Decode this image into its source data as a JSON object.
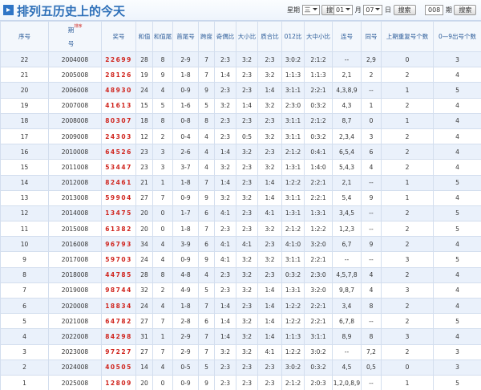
{
  "header": {
    "title": "排列五历史上的今天",
    "weekday_label": "星期",
    "weekday_value": "三",
    "month_value": "01",
    "month_label": "月",
    "day_value": "07",
    "day_label": "日",
    "issue_value": "008",
    "issue_label": "期",
    "search": "搜索"
  },
  "table": {
    "columns": [
      "序号",
      "期号",
      "奖号",
      "和值",
      "和值尾",
      "首尾号",
      "跨度",
      "奇偶比",
      "大小比",
      "质合比",
      "012比",
      "大中小比",
      "连号",
      "同号",
      "上期重复号个数",
      "0—9出号个数"
    ],
    "sort_label": "排序",
    "rows": [
      [
        "22",
        "2004008",
        "22699",
        "28",
        "8",
        "2-9",
        "7",
        "2:3",
        "3:2",
        "2:3",
        "3:0:2",
        "2:1:2",
        "--",
        "2,9",
        "0",
        "3"
      ],
      [
        "21",
        "2005008",
        "28126",
        "19",
        "9",
        "1-8",
        "7",
        "1:4",
        "2:3",
        "3:2",
        "1:1:3",
        "1:1:3",
        "2,1",
        "2",
        "2",
        "4"
      ],
      [
        "20",
        "2006008",
        "48930",
        "24",
        "4",
        "0-9",
        "9",
        "2:3",
        "2:3",
        "1:4",
        "3:1:1",
        "2:2:1",
        "4,3,8,9",
        "--",
        "1",
        "5"
      ],
      [
        "19",
        "2007008",
        "41613",
        "15",
        "5",
        "1-6",
        "5",
        "3:2",
        "1:4",
        "3:2",
        "2:3:0",
        "0:3:2",
        "4,3",
        "1",
        "2",
        "4"
      ],
      [
        "18",
        "2008008",
        "80307",
        "18",
        "8",
        "0-8",
        "8",
        "2:3",
        "2:3",
        "2:3",
        "3:1:1",
        "2:1:2",
        "8,7",
        "0",
        "1",
        "4"
      ],
      [
        "17",
        "2009008",
        "24303",
        "12",
        "2",
        "0-4",
        "4",
        "2:3",
        "0:5",
        "3:2",
        "3:1:1",
        "0:3:2",
        "2,3,4",
        "3",
        "2",
        "4"
      ],
      [
        "16",
        "2010008",
        "64526",
        "23",
        "3",
        "2-6",
        "4",
        "1:4",
        "3:2",
        "2:3",
        "2:1:2",
        "0:4:1",
        "6,5,4",
        "6",
        "2",
        "4"
      ],
      [
        "15",
        "2011008",
        "53447",
        "23",
        "3",
        "3-7",
        "4",
        "3:2",
        "2:3",
        "3:2",
        "1:3:1",
        "1:4:0",
        "5,4,3",
        "4",
        "2",
        "4"
      ],
      [
        "14",
        "2012008",
        "82461",
        "21",
        "1",
        "1-8",
        "7",
        "1:4",
        "2:3",
        "1:4",
        "1:2:2",
        "2:2:1",
        "2,1",
        "--",
        "1",
        "5"
      ],
      [
        "13",
        "2013008",
        "59904",
        "27",
        "7",
        "0-9",
        "9",
        "3:2",
        "3:2",
        "1:4",
        "3:1:1",
        "2:2:1",
        "5,4",
        "9",
        "1",
        "4"
      ],
      [
        "12",
        "2014008",
        "13475",
        "20",
        "0",
        "1-7",
        "6",
        "4:1",
        "2:3",
        "4:1",
        "1:3:1",
        "1:3:1",
        "3,4,5",
        "--",
        "2",
        "5"
      ],
      [
        "11",
        "2015008",
        "61382",
        "20",
        "0",
        "1-8",
        "7",
        "2:3",
        "2:3",
        "3:2",
        "2:1:2",
        "1:2:2",
        "1,2,3",
        "--",
        "2",
        "5"
      ],
      [
        "10",
        "2016008",
        "96793",
        "34",
        "4",
        "3-9",
        "6",
        "4:1",
        "4:1",
        "2:3",
        "4:1:0",
        "3:2:0",
        "6,7",
        "9",
        "2",
        "4"
      ],
      [
        "9",
        "2017008",
        "59703",
        "24",
        "4",
        "0-9",
        "9",
        "4:1",
        "3:2",
        "3:2",
        "3:1:1",
        "2:2:1",
        "--",
        "--",
        "3",
        "5"
      ],
      [
        "8",
        "2018008",
        "44785",
        "28",
        "8",
        "4-8",
        "4",
        "2:3",
        "3:2",
        "2:3",
        "0:3:2",
        "2:3:0",
        "4,5,7,8",
        "4",
        "2",
        "4"
      ],
      [
        "7",
        "2019008",
        "98744",
        "32",
        "2",
        "4-9",
        "5",
        "2:3",
        "3:2",
        "1:4",
        "1:3:1",
        "3:2:0",
        "9,8,7",
        "4",
        "3",
        "4"
      ],
      [
        "6",
        "2020008",
        "18834",
        "24",
        "4",
        "1-8",
        "7",
        "1:4",
        "2:3",
        "1:4",
        "1:2:2",
        "2:2:1",
        "3,4",
        "8",
        "2",
        "4"
      ],
      [
        "5",
        "2021008",
        "64782",
        "27",
        "7",
        "2-8",
        "6",
        "1:4",
        "3:2",
        "1:4",
        "1:2:2",
        "2:2:1",
        "6,7,8",
        "--",
        "2",
        "5"
      ],
      [
        "4",
        "2022008",
        "84298",
        "31",
        "1",
        "2-9",
        "7",
        "1:4",
        "3:2",
        "1:4",
        "1:1:3",
        "3:1:1",
        "8,9",
        "8",
        "3",
        "4"
      ],
      [
        "3",
        "2023008",
        "97227",
        "27",
        "7",
        "2-9",
        "7",
        "3:2",
        "3:2",
        "4:1",
        "1:2:2",
        "3:0:2",
        "--",
        "7,2",
        "2",
        "3"
      ],
      [
        "2",
        "2024008",
        "40505",
        "14",
        "4",
        "0-5",
        "5",
        "2:3",
        "2:3",
        "2:3",
        "3:0:2",
        "0:3:2",
        "4,5",
        "0,5",
        "0",
        "3"
      ],
      [
        "1",
        "2025008",
        "12809",
        "20",
        "0",
        "0-9",
        "9",
        "2:3",
        "2:3",
        "2:3",
        "2:1:2",
        "2:0:3",
        "1,2,0,8,9",
        "--",
        "1",
        "5"
      ]
    ]
  }
}
